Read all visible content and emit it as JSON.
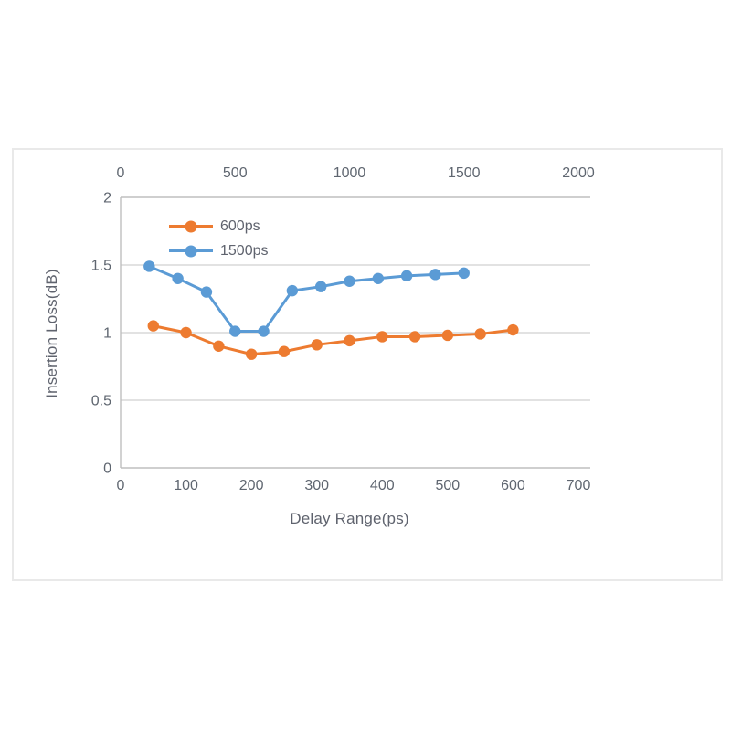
{
  "chart_data": {
    "type": "line",
    "title": "",
    "xlabel": "Delay Range(ps)",
    "ylabel": "Insertion Loss(dB)",
    "grid": true,
    "legend_position": "top-left-inside",
    "x_axis_bottom": {
      "ticks": [
        0,
        100,
        200,
        300,
        400,
        500,
        600,
        700
      ],
      "range": [
        0,
        700
      ]
    },
    "x_axis_top": {
      "ticks": [
        0,
        500,
        1000,
        1500,
        2000
      ],
      "range": [
        0,
        2000
      ]
    },
    "y_axis": {
      "ticks": [
        0,
        0.5,
        1,
        1.5,
        2
      ],
      "range": [
        0,
        2
      ]
    },
    "series": [
      {
        "name": "600ps",
        "color": "#ed7b30",
        "axis": "bottom",
        "x": [
          50,
          100,
          150,
          200,
          250,
          300,
          350,
          400,
          450,
          500,
          550,
          600
        ],
        "y": [
          1.05,
          1.0,
          0.9,
          0.84,
          0.86,
          0.91,
          0.94,
          0.97,
          0.97,
          0.98,
          0.99,
          1.02
        ]
      },
      {
        "name": "1500ps",
        "color": "#5b9bd5",
        "axis": "top",
        "x": [
          125,
          250,
          375,
          500,
          625,
          750,
          875,
          1000,
          1125,
          1250,
          1375,
          1500
        ],
        "y": [
          1.49,
          1.4,
          1.3,
          1.01,
          1.01,
          1.31,
          1.34,
          1.38,
          1.4,
          1.42,
          1.43,
          1.44
        ]
      }
    ],
    "colors": {
      "gridline": "#d9d9d9",
      "spine": "#bfbfbf",
      "tick_text": "#5f6670"
    }
  }
}
